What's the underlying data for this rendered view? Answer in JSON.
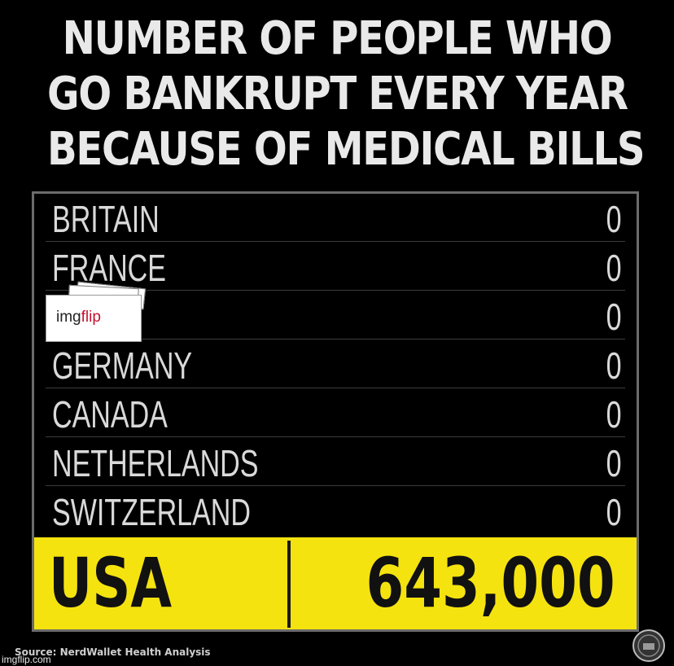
{
  "chart_data": {
    "type": "table",
    "title_lines": [
      "NUMBER OF PEOPLE WHO",
      "GO BANKRUPT EVERY YEAR",
      "BECAUSE OF MEDICAL BILLS"
    ],
    "rows": [
      {
        "country": "BRITAIN",
        "value": "0"
      },
      {
        "country": "FRANCE",
        "value": "0"
      },
      {
        "country": "",
        "value": "0"
      },
      {
        "country": "GERMANY",
        "value": "0"
      },
      {
        "country": "CANADA",
        "value": "0"
      },
      {
        "country": "NETHERLANDS",
        "value": "0"
      },
      {
        "country": "SWITZERLAND",
        "value": "0"
      }
    ],
    "highlight": {
      "country": "USA",
      "value": "643,000"
    },
    "source": "Source: NerdWallet Health Analysis"
  },
  "overlay": {
    "meme_watermark": {
      "img": "img",
      "flip": "flip"
    },
    "site_watermark": "imgflip.com"
  },
  "colors": {
    "background": "#000000",
    "highlight": "#f5e30f",
    "text": "#d9d9d9",
    "brand_red": "#c8102e"
  }
}
